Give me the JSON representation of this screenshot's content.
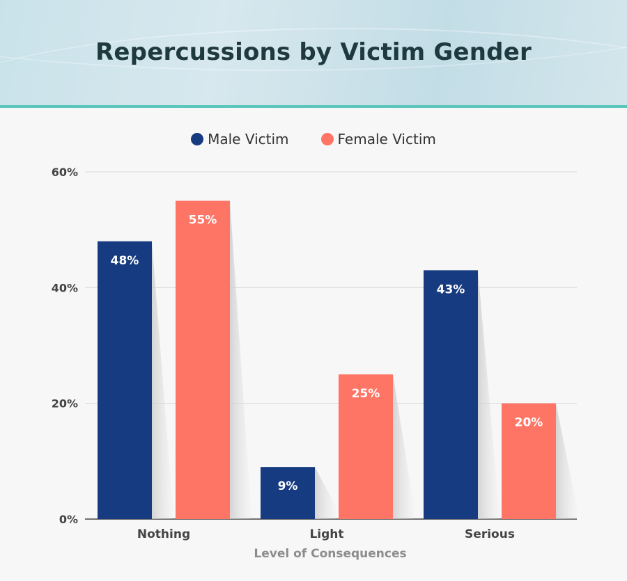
{
  "header": {
    "title": "Repercussions by Victim Gender"
  },
  "legend": {
    "items": [
      {
        "label": "Male Victim",
        "color": "#173b80"
      },
      {
        "label": "Female Victim",
        "color": "#ff7565"
      }
    ]
  },
  "chart_data": {
    "type": "bar",
    "title": "Repercussions by Victim Gender",
    "xlabel": "Level of Consequences",
    "ylabel": "",
    "categories": [
      "Nothing",
      "Light",
      "Serious"
    ],
    "series": [
      {
        "name": "Male Victim",
        "values": [
          48,
          9,
          43
        ],
        "labels": [
          "48%",
          "9%",
          "43%"
        ],
        "color": "#173b80"
      },
      {
        "name": "Female Victim",
        "values": [
          55,
          25,
          20
        ],
        "labels": [
          "55%",
          "25%",
          "20%"
        ],
        "color": "#ff7565"
      }
    ],
    "ylim": [
      0,
      60
    ],
    "yticks": [
      0,
      20,
      40,
      60
    ],
    "ytick_labels": [
      "0%",
      "20%",
      "40%",
      "60%"
    ],
    "grid": true,
    "legend_position": "top-center"
  }
}
